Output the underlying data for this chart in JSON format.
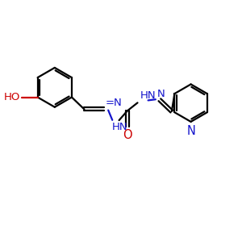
{
  "bg_color": "#ffffff",
  "bond_color": "#000000",
  "n_color": "#1414cc",
  "o_color": "#cc0000",
  "line_width": 1.6,
  "fig_size": [
    3.0,
    3.0
  ],
  "dpi": 100,
  "xlim": [
    0,
    10
  ],
  "ylim": [
    0,
    10
  ]
}
